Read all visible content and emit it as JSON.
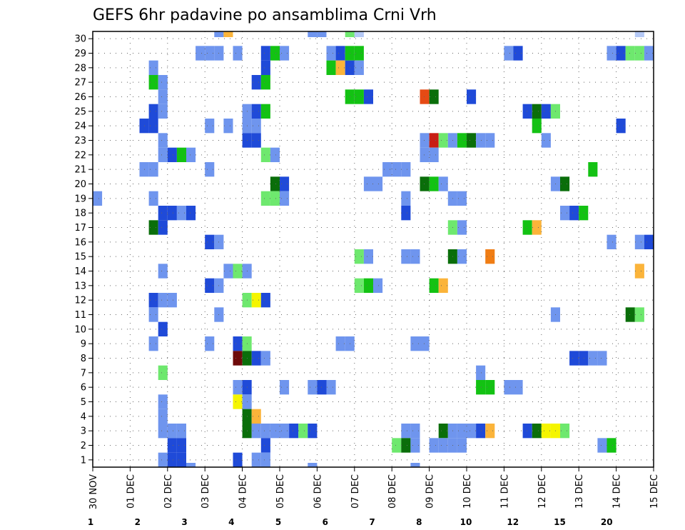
{
  "chart_data": {
    "type": "heatmap",
    "title": "GEFS 6hr padavine po ansamblima Crni Vrh",
    "xlabel": "",
    "ylabel": "",
    "x_tick_labels": [
      "30 NOV",
      "01 DEC",
      "02 DEC",
      "03 DEC",
      "04 DEC",
      "05 DEC",
      "06 DEC",
      "07 DEC",
      "08 DEC",
      "09 DEC",
      "10 DEC",
      "11 DEC",
      "12 DEC",
      "13 DEC",
      "14 DEC",
      "15 DEC"
    ],
    "y_tick_labels": [
      "1",
      "2",
      "3",
      "4",
      "5",
      "6",
      "7",
      "8",
      "9",
      "10",
      "11",
      "12",
      "13",
      "14",
      "15",
      "16",
      "17",
      "18",
      "19",
      "20",
      "21",
      "22",
      "23",
      "24",
      "25",
      "26",
      "27",
      "28",
      "29",
      "30"
    ],
    "x_step_hours": 6,
    "n_steps": 60,
    "n_members": 30,
    "grid": true,
    "legend_position": "bottom",
    "legend": [
      {
        "label": "1",
        "color": "#b4c8f5"
      },
      {
        "label": "2",
        "color": "#6f95ee"
      },
      {
        "label": "3",
        "color": "#1f4ad8"
      },
      {
        "label": "4",
        "color": "#6ee86e"
      },
      {
        "label": "5",
        "color": "#13c213"
      },
      {
        "label": "6",
        "color": "#0a6e0a"
      },
      {
        "label": "7",
        "color": "#f5f500"
      },
      {
        "label": "8",
        "color": "#fbb43a"
      },
      {
        "label": "10",
        "color": "#f07d14"
      },
      {
        "label": "12",
        "color": "#e64a14"
      },
      {
        "label": "15",
        "color": "#c81e14"
      },
      {
        "label": "20",
        "color": "#6e0a0a"
      }
    ],
    "cells": [
      [
        30,
        1,
        0
      ],
      [
        30,
        2,
        7
      ],
      [
        30,
        3,
        1
      ],
      [
        30,
        4,
        10
      ],
      [
        30,
        5,
        2
      ],
      [
        30,
        6,
        12
      ],
      [
        30,
        7,
        15
      ],
      [
        30,
        8,
        20
      ],
      [
        30,
        9,
        1
      ],
      [
        2,
        16,
        2
      ],
      [
        3,
        16,
        1
      ],
      [
        4,
        16,
        2
      ],
      [
        1,
        16,
        1
      ],
      [
        2,
        15,
        1
      ],
      [
        1,
        14,
        1
      ],
      [
        0,
        15,
        0
      ],
      [
        30,
        10,
        2
      ],
      [
        30,
        11,
        2
      ],
      [
        30,
        12,
        3
      ],
      [
        30,
        13,
        6
      ],
      [
        30,
        14,
        7
      ],
      [
        1,
        30,
        1
      ],
      [
        3,
        30,
        1
      ],
      [
        4,
        30,
        2
      ]
    ]
  }
}
